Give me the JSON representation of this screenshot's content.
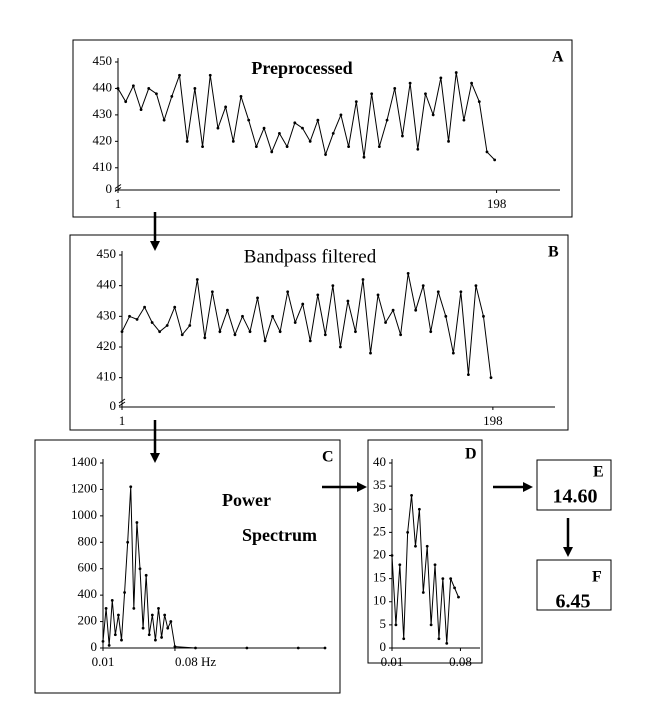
{
  "chart_data": [
    {
      "type": "line",
      "label": "A",
      "title": "Preprocessed",
      "color": "#000000",
      "x": [
        1,
        5,
        9,
        13,
        17,
        21,
        25,
        29,
        33,
        37,
        41,
        45,
        49,
        53,
        57,
        61,
        65,
        69,
        73,
        77,
        81,
        85,
        89,
        93,
        97,
        101,
        105,
        109,
        113,
        117,
        121,
        125,
        129,
        133,
        137,
        141,
        145,
        149,
        153,
        157,
        161,
        165,
        169,
        173,
        177,
        181,
        185,
        189,
        193,
        197
      ],
      "values": [
        440,
        435,
        441,
        432,
        440,
        438,
        428,
        437,
        445,
        420,
        440,
        418,
        445,
        425,
        433,
        420,
        437,
        428,
        418,
        425,
        416,
        423,
        418,
        427,
        425,
        420,
        428,
        415,
        423,
        430,
        418,
        435,
        414,
        438,
        418,
        428,
        440,
        422,
        442,
        417,
        438,
        430,
        444,
        420,
        446,
        428,
        442,
        435,
        416,
        413
      ],
      "xlim": [
        1,
        231
      ],
      "xticks": [
        1,
        198
      ],
      "ylim": [
        0,
        450
      ],
      "yticks": [
        0,
        410,
        420,
        430,
        440,
        450
      ],
      "ybreak": [
        0,
        405
      ]
    },
    {
      "type": "line",
      "label": "B",
      "title": "Bandpass filtered",
      "color": "#000000",
      "x": [
        1,
        5,
        9,
        13,
        17,
        21,
        25,
        29,
        33,
        37,
        41,
        45,
        49,
        53,
        57,
        61,
        65,
        69,
        73,
        77,
        81,
        85,
        89,
        93,
        97,
        101,
        105,
        109,
        113,
        117,
        121,
        125,
        129,
        133,
        137,
        141,
        145,
        149,
        153,
        157,
        161,
        165,
        169,
        173,
        177,
        181,
        185,
        189,
        193,
        197
      ],
      "values": [
        425,
        430,
        429,
        433,
        428,
        425,
        427,
        433,
        424,
        427,
        442,
        423,
        438,
        425,
        432,
        424,
        430,
        425,
        436,
        422,
        430,
        425,
        438,
        428,
        434,
        422,
        437,
        424,
        440,
        420,
        435,
        425,
        442,
        418,
        437,
        428,
        432,
        424,
        444,
        432,
        440,
        425,
        438,
        430,
        418,
        438,
        411,
        440,
        430,
        410
      ],
      "xlim": [
        1,
        231
      ],
      "xticks": [
        1,
        198
      ],
      "ylim": [
        0,
        450
      ],
      "yticks": [
        0,
        410,
        420,
        430,
        440,
        450
      ],
      "ybreak": [
        0,
        405
      ]
    },
    {
      "type": "line",
      "label": "C",
      "title": "Power Spectrum",
      "color": "#000000",
      "x": [
        0.01,
        0.013,
        0.016,
        0.019,
        0.022,
        0.025,
        0.028,
        0.031,
        0.034,
        0.037,
        0.04,
        0.043,
        0.046,
        0.049,
        0.052,
        0.055,
        0.058,
        0.061,
        0.064,
        0.067,
        0.07,
        0.073,
        0.076,
        0.08,
        0.1,
        0.15,
        0.2,
        0.226
      ],
      "values": [
        50,
        300,
        20,
        360,
        100,
        250,
        60,
        420,
        800,
        1220,
        300,
        950,
        600,
        150,
        550,
        100,
        250,
        60,
        300,
        80,
        250,
        150,
        200,
        10,
        0,
        0,
        0,
        0
      ],
      "xlim": [
        0.01,
        0.226
      ],
      "xticks": [
        0.01,
        {
          "value": 0.08,
          "label": "0.08 Hz"
        }
      ],
      "ylim": [
        0,
        1400
      ],
      "yticks": [
        0,
        200,
        400,
        600,
        800,
        1000,
        1200,
        1400
      ]
    },
    {
      "type": "line",
      "label": "D",
      "color": "#000000",
      "x": [
        0.01,
        0.014,
        0.018,
        0.022,
        0.026,
        0.03,
        0.034,
        0.038,
        0.042,
        0.046,
        0.05,
        0.054,
        0.058,
        0.062,
        0.066,
        0.07,
        0.074,
        0.078
      ],
      "values": [
        20,
        5,
        18,
        2,
        25,
        33,
        22,
        30,
        12,
        22,
        5,
        18,
        2,
        15,
        1,
        15,
        13,
        11
      ],
      "xlim": [
        0.01,
        0.1
      ],
      "xticks": [
        0.01,
        0.08
      ],
      "ylim": [
        0,
        40
      ],
      "yticks": [
        0,
        5,
        10,
        15,
        20,
        25,
        30,
        35,
        40
      ]
    }
  ],
  "results": [
    {
      "label": "E",
      "value": "14.60"
    },
    {
      "label": "F",
      "value": "6.45"
    }
  ]
}
